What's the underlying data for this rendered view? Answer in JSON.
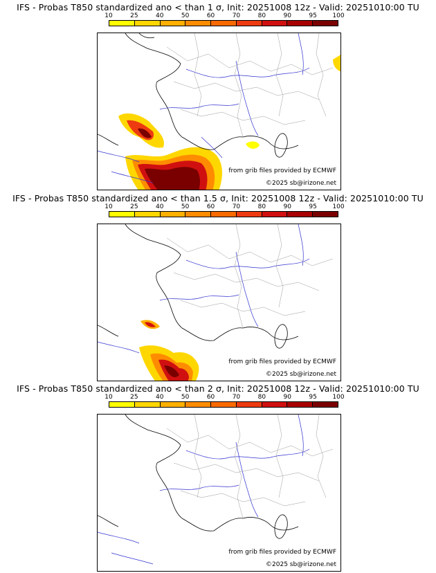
{
  "panels": [
    {
      "title": "IFS - Probas T850  standardized ano < than 1 σ, Init: 20251008 12z - Valid: 20251010:00 TU",
      "credit_grib": "from grib files provided by ECMWF",
      "credit_site": "©2025 sb@irizone.net"
    },
    {
      "title": "IFS - Probas T850  standardized ano < than 1.5 σ, Init: 20251008 12z - Valid: 20251010:00 TU",
      "credit_grib": "from grib files provided by ECMWF",
      "credit_site": "©2025 sb@irizone.net"
    },
    {
      "title": "IFS - Probas T850  standardized ano < than 2 σ, Init: 20251008 12z - Valid: 20251010:00 TU",
      "credit_grib": "from grib files provided by ECMWF",
      "credit_site": "©2025 sb@irizone.net"
    }
  ],
  "colorbar": {
    "ticks": [
      "10",
      "25",
      "40",
      "50",
      "60",
      "70",
      "80",
      "90",
      "95",
      "100"
    ],
    "colors": [
      "#ffff00",
      "#ffd700",
      "#ffb000",
      "#ff8c00",
      "#f86a00",
      "#ee3a10",
      "#d01010",
      "#a80000",
      "#7a0000"
    ]
  }
}
